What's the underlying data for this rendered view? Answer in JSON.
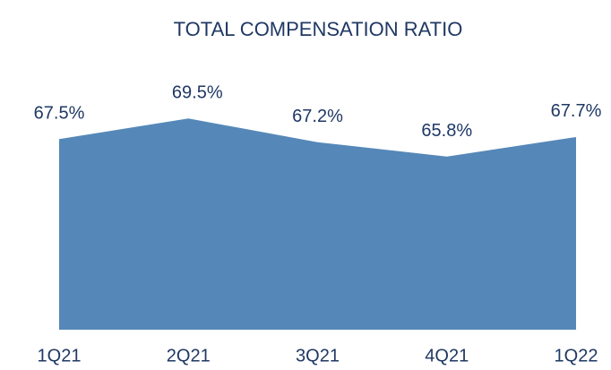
{
  "chart_data": {
    "type": "area",
    "title": "TOTAL COMPENSATION RATIO",
    "categories": [
      "1Q21",
      "2Q21",
      "3Q21",
      "4Q21",
      "1Q22"
    ],
    "values": [
      67.5,
      69.5,
      67.2,
      65.8,
      67.7
    ],
    "value_labels": [
      "67.5%",
      "69.5%",
      "67.2%",
      "65.8%",
      "67.7%"
    ],
    "color": "#5588b8",
    "ylim": [
      49,
      72
    ]
  }
}
